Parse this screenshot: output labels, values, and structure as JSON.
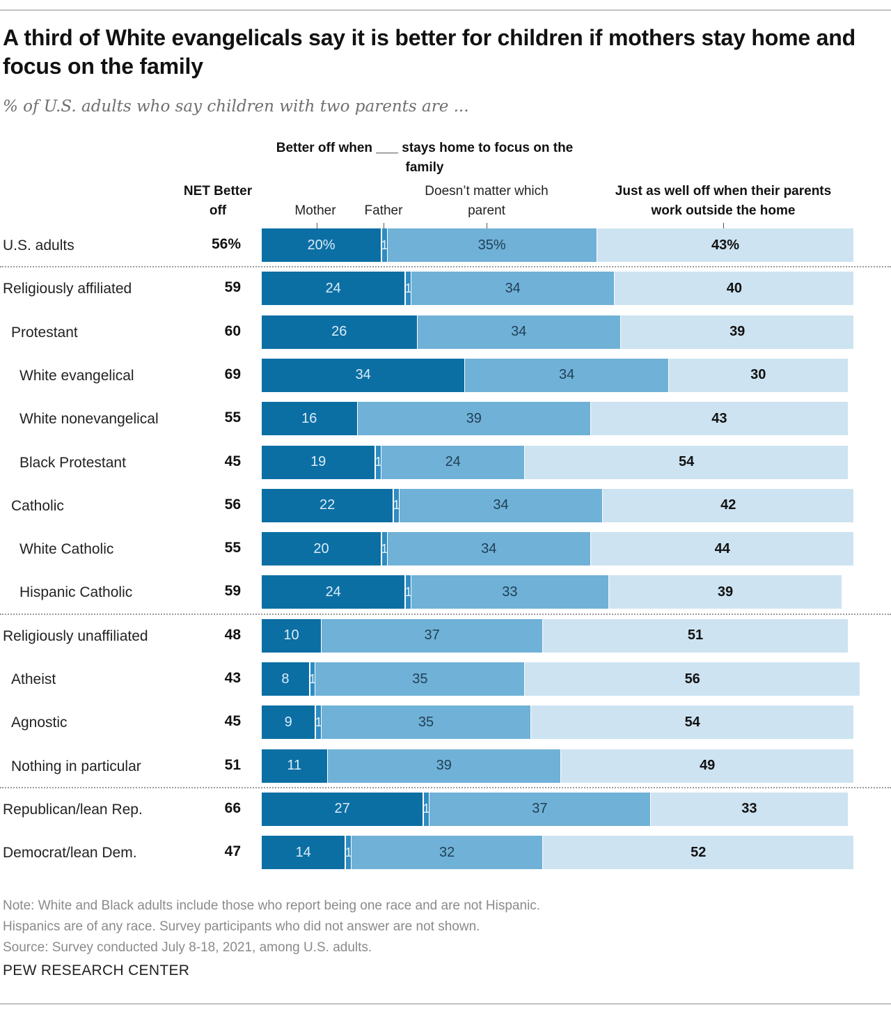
{
  "title": "A third of White evangelicals say it is better for children if mothers stay home and focus on the family",
  "subtitle": "% of U.S. adults who say children with two parents are ...",
  "headers": {
    "group": "Better off when ___ stays home to focus on the family",
    "net": "NET Better off",
    "mother": "Mother",
    "father": "Father",
    "doesnt_matter": "Doesn’t matter which parent",
    "work_outside": "Just as well off when their parents work outside the home"
  },
  "colors": {
    "mother": "#0b6fa4",
    "father": "#2e8cc2",
    "doesnt_matter": "#70b1d7",
    "work_outside": "#cde3f1"
  },
  "notes": [
    "Note: White and Black adults include those who report being one race and are not Hispanic.",
    "Hispanics are of any race. Survey participants who did not answer are not shown.",
    "Source: Survey conducted July 8-18, 2021, among U.S. adults."
  ],
  "source_logo": "PEW RESEARCH CENTER",
  "chart_data": {
    "type": "bar",
    "orientation": "horizontal",
    "stacked": true,
    "series_names": [
      "Mother",
      "Father",
      "Doesn’t matter which parent",
      "Just as well off when their parents work outside the home"
    ],
    "rows": [
      {
        "label": "U.S. adults",
        "net": "56%",
        "mother": 20,
        "father": 1,
        "doesnt": 35,
        "outside": 43,
        "labels": [
          "20%",
          "1%",
          "35%",
          "43%"
        ]
      },
      {
        "label": "Religiously affiliated",
        "net": "59",
        "mother": 24,
        "father": 1,
        "doesnt": 34,
        "outside": 40,
        "labels": [
          "24",
          "1",
          "34",
          "40"
        ]
      },
      {
        "label": "Protestant",
        "net": "60",
        "mother": 26,
        "father": 0,
        "doesnt": 34,
        "outside": 39,
        "labels": [
          "26",
          "",
          "34",
          "39"
        ]
      },
      {
        "label": "White evangelical",
        "net": "69",
        "mother": 34,
        "father": 0,
        "doesnt": 34,
        "outside": 30,
        "labels": [
          "34",
          "",
          "34",
          "30"
        ]
      },
      {
        "label": "White nonevangelical",
        "net": "55",
        "mother": 16,
        "father": 0,
        "doesnt": 39,
        "outside": 43,
        "labels": [
          "16",
          "",
          "39",
          "43"
        ]
      },
      {
        "label": "Black Protestant",
        "net": "45",
        "mother": 19,
        "father": 1,
        "doesnt": 24,
        "outside": 54,
        "labels": [
          "19",
          "1",
          "24",
          "54"
        ]
      },
      {
        "label": "Catholic",
        "net": "56",
        "mother": 22,
        "father": 1,
        "doesnt": 34,
        "outside": 42,
        "labels": [
          "22",
          "1",
          "34",
          "42"
        ]
      },
      {
        "label": "White Catholic",
        "net": "55",
        "mother": 20,
        "father": 1,
        "doesnt": 34,
        "outside": 44,
        "labels": [
          "20",
          "1",
          "34",
          "44"
        ]
      },
      {
        "label": "Hispanic Catholic",
        "net": "59",
        "mother": 24,
        "father": 1,
        "doesnt": 33,
        "outside": 39,
        "labels": [
          "24",
          "1",
          "33",
          "39"
        ]
      },
      {
        "label": "Religiously unaffiliated",
        "net": "48",
        "mother": 10,
        "father": 0,
        "doesnt": 37,
        "outside": 51,
        "labels": [
          "10",
          "",
          "37",
          "51"
        ]
      },
      {
        "label": "Atheist",
        "net": "43",
        "mother": 8,
        "father": 1,
        "doesnt": 35,
        "outside": 56,
        "labels": [
          "8",
          "1",
          "35",
          "56"
        ]
      },
      {
        "label": "Agnostic",
        "net": "45",
        "mother": 9,
        "father": 1,
        "doesnt": 35,
        "outside": 54,
        "labels": [
          "9",
          "1",
          "35",
          "54"
        ]
      },
      {
        "label": "Nothing in particular",
        "net": "51",
        "mother": 11,
        "father": 0,
        "doesnt": 39,
        "outside": 49,
        "labels": [
          "11",
          "",
          "39",
          "49"
        ]
      },
      {
        "label": "Republican/lean Rep.",
        "net": "66",
        "mother": 27,
        "father": 1,
        "doesnt": 37,
        "outside": 33,
        "labels": [
          "27",
          "1",
          "37",
          "33"
        ]
      },
      {
        "label": "Democrat/lean Dem.",
        "net": "47",
        "mother": 14,
        "father": 1,
        "doesnt": 32,
        "outside": 52,
        "labels": [
          "14",
          "1",
          "32",
          "52"
        ]
      }
    ],
    "row_indent": [
      0,
      0,
      1,
      2,
      2,
      2,
      1,
      2,
      2,
      0,
      1,
      1,
      1,
      0,
      0
    ],
    "separators_after": [
      0,
      8,
      12
    ],
    "xlim": [
      0,
      100
    ],
    "legend": "column headers above bars",
    "grid": false
  }
}
